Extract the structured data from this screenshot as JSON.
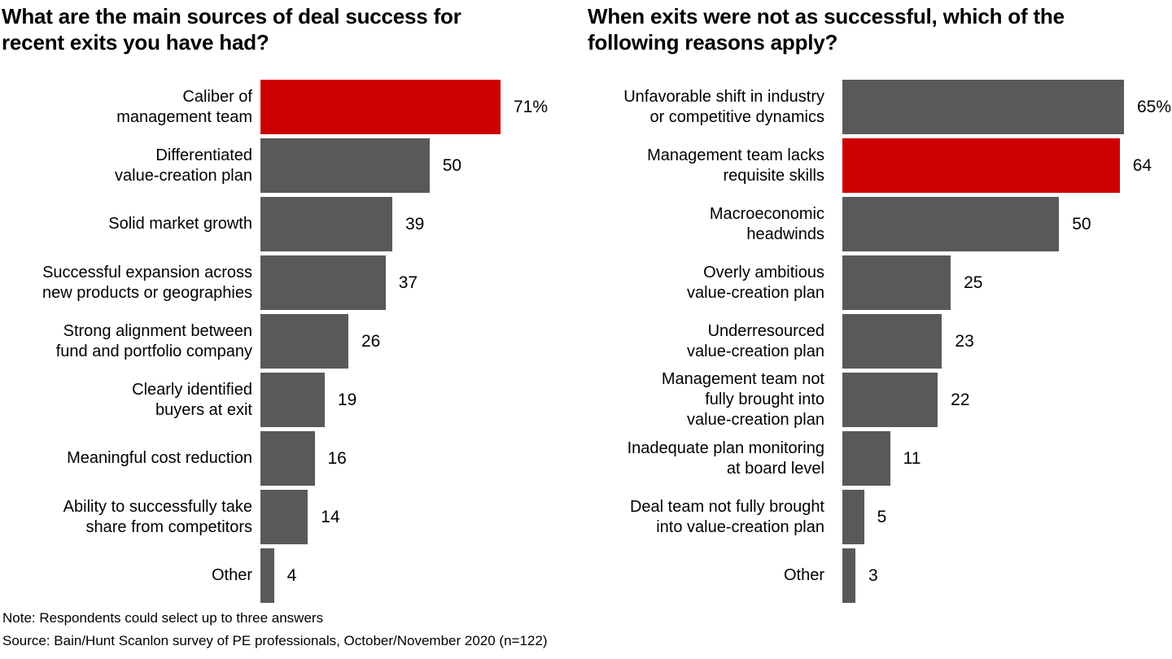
{
  "colors": {
    "background": "#ffffff",
    "bar_gray": "#595959",
    "bar_red": "#cc0000",
    "text": "#000000"
  },
  "footer": {
    "note": "Note: Respondents could select up to three answers",
    "source": "Source: Bain/Hunt Scanlon survey of PE professionals, October/November 2020 (n=122)"
  },
  "chart_data": [
    {
      "type": "bar",
      "orientation": "horizontal",
      "title": "What are the main sources of deal success for recent exits you have had?",
      "title_lines": [
        "What are the main sources of deal success for",
        "recent exits you have had?"
      ],
      "categories": [
        "Caliber of management team",
        "Differentiated value-creation plan",
        "Solid market growth",
        "Successful expansion across new products or geographies",
        "Strong alignment between fund and portfolio company",
        "Clearly identified buyers at exit",
        "Meaningful cost reduction",
        "Ability to successfully take share from competitors",
        "Other"
      ],
      "categories_wrapped": [
        [
          "Caliber of",
          "management team"
        ],
        [
          "Differentiated",
          "value-creation plan"
        ],
        [
          "Solid market growth"
        ],
        [
          "Successful expansion across",
          "new products or geographies"
        ],
        [
          "Strong alignment between",
          "fund and portfolio company"
        ],
        [
          "Clearly identified",
          "buyers at exit"
        ],
        [
          "Meaningful cost reduction"
        ],
        [
          "Ability to successfully take",
          "share from competitors"
        ],
        [
          "Other"
        ]
      ],
      "values": [
        71,
        50,
        39,
        37,
        26,
        19,
        16,
        14,
        4
      ],
      "value_labels": [
        "71%",
        "50",
        "39",
        "37",
        "26",
        "19",
        "16",
        "14",
        "4"
      ],
      "unit": "percent",
      "xlim": [
        0,
        71
      ],
      "highlight_index": 0,
      "bar_color": "#595959",
      "highlight_color": "#cc0000",
      "grid": false,
      "legend": "none",
      "sort": "descending"
    },
    {
      "type": "bar",
      "orientation": "horizontal",
      "title": "When exits were not as successful, which of the following reasons apply?",
      "title_lines": [
        "When exits were not as successful, which of the",
        "following reasons apply?"
      ],
      "categories": [
        "Unfavorable shift in industry or competitive dynamics",
        "Management team lacks requisite skills",
        "Macroeconomic headwinds",
        "Overly ambitious value-creation plan",
        "Underresourced value-creation plan",
        "Management team not fully brought into value-creation plan",
        "Inadequate plan monitoring at board level",
        "Deal team not fully brought into value-creation plan",
        "Other"
      ],
      "categories_wrapped": [
        [
          "Unfavorable shift in industry",
          "or competitive dynamics"
        ],
        [
          "Management team lacks",
          "requisite skills"
        ],
        [
          "Macroeconomic",
          "headwinds"
        ],
        [
          "Overly ambitious",
          "value-creation plan"
        ],
        [
          "Underresourced",
          "value-creation plan"
        ],
        [
          "Management team not",
          "fully brought into",
          "value-creation plan"
        ],
        [
          "Inadequate plan monitoring",
          "at board level"
        ],
        [
          "Deal team not fully brought",
          "into value-creation plan"
        ],
        [
          "Other"
        ]
      ],
      "values": [
        65,
        64,
        50,
        25,
        23,
        22,
        11,
        5,
        3
      ],
      "value_labels": [
        "65%",
        "64",
        "50",
        "25",
        "23",
        "22",
        "11",
        "5",
        "3"
      ],
      "unit": "percent",
      "xlim": [
        0,
        65
      ],
      "highlight_index": 1,
      "bar_color": "#595959",
      "highlight_color": "#cc0000",
      "grid": false,
      "legend": "none",
      "sort": "descending"
    }
  ]
}
